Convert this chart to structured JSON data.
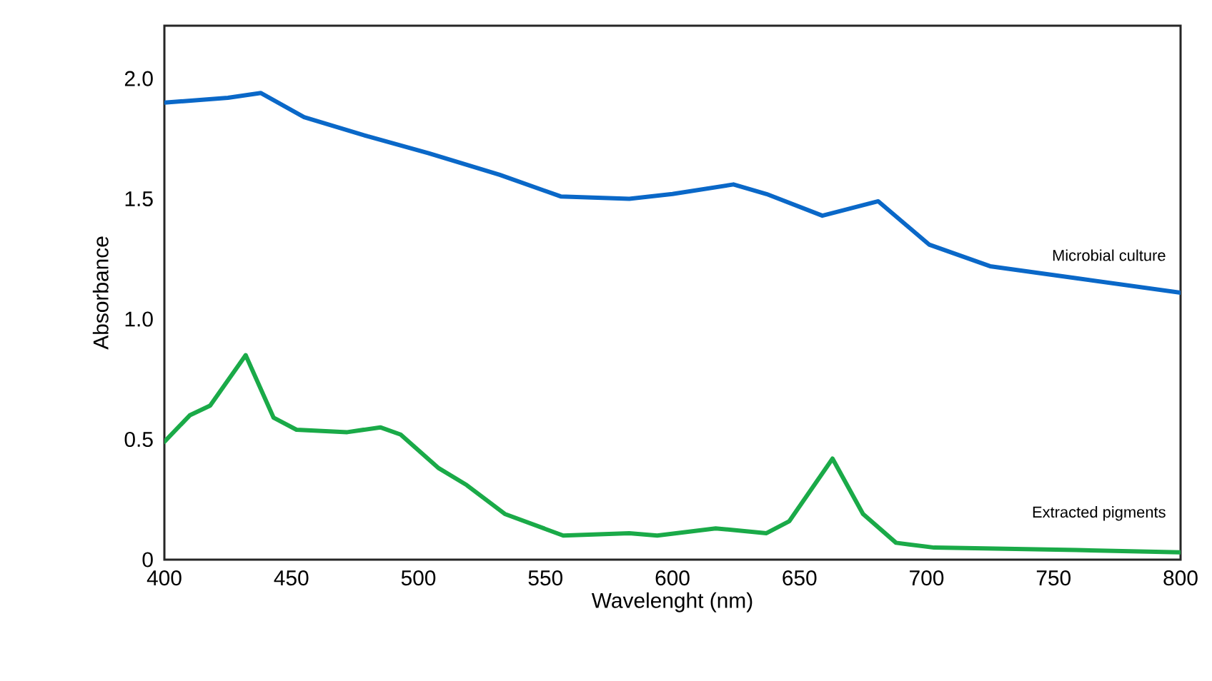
{
  "chart_data": {
    "type": "line",
    "xlabel": "Wavelenght (nm)",
    "ylabel": "Absorbance",
    "xlim": [
      400,
      800
    ],
    "ylim": [
      0,
      2.22
    ],
    "xticks": [
      400,
      450,
      500,
      550,
      600,
      650,
      700,
      750,
      800
    ],
    "yticks": [
      {
        "value": 0,
        "label": "0"
      },
      {
        "value": 0.5,
        "label": "0.5"
      },
      {
        "value": 1,
        "label": "1.0"
      },
      {
        "value": 1.5,
        "label": "1.5"
      },
      {
        "value": 2,
        "label": "2.0"
      }
    ],
    "grid": false,
    "legend": false,
    "marker": "none",
    "line_style": "solid",
    "series": [
      {
        "name": "Microbial culture",
        "color": "#0a68c8",
        "x": [
          400,
          425,
          438,
          455,
          480,
          504,
          532,
          556,
          583,
          600,
          624,
          637,
          659,
          681,
          701,
          725,
          759,
          800
        ],
        "values": [
          1.9,
          1.92,
          1.94,
          1.84,
          1.76,
          1.69,
          1.6,
          1.51,
          1.5,
          1.52,
          1.56,
          1.52,
          1.43,
          1.49,
          1.31,
          1.22,
          1.17,
          1.11
        ]
      },
      {
        "name": "Extracted pigments",
        "color": "#1aaa48",
        "x": [
          400,
          410,
          418,
          432,
          443,
          452,
          472,
          485,
          493,
          508,
          519,
          534,
          557,
          583,
          594,
          617,
          637,
          646,
          663,
          675,
          688,
          703,
          759,
          800
        ],
        "values": [
          0.49,
          0.6,
          0.64,
          0.85,
          0.59,
          0.54,
          0.53,
          0.55,
          0.52,
          0.38,
          0.31,
          0.19,
          0.1,
          0.11,
          0.1,
          0.13,
          0.11,
          0.16,
          0.42,
          0.19,
          0.07,
          0.05,
          0.04,
          0.03
        ]
      }
    ]
  }
}
